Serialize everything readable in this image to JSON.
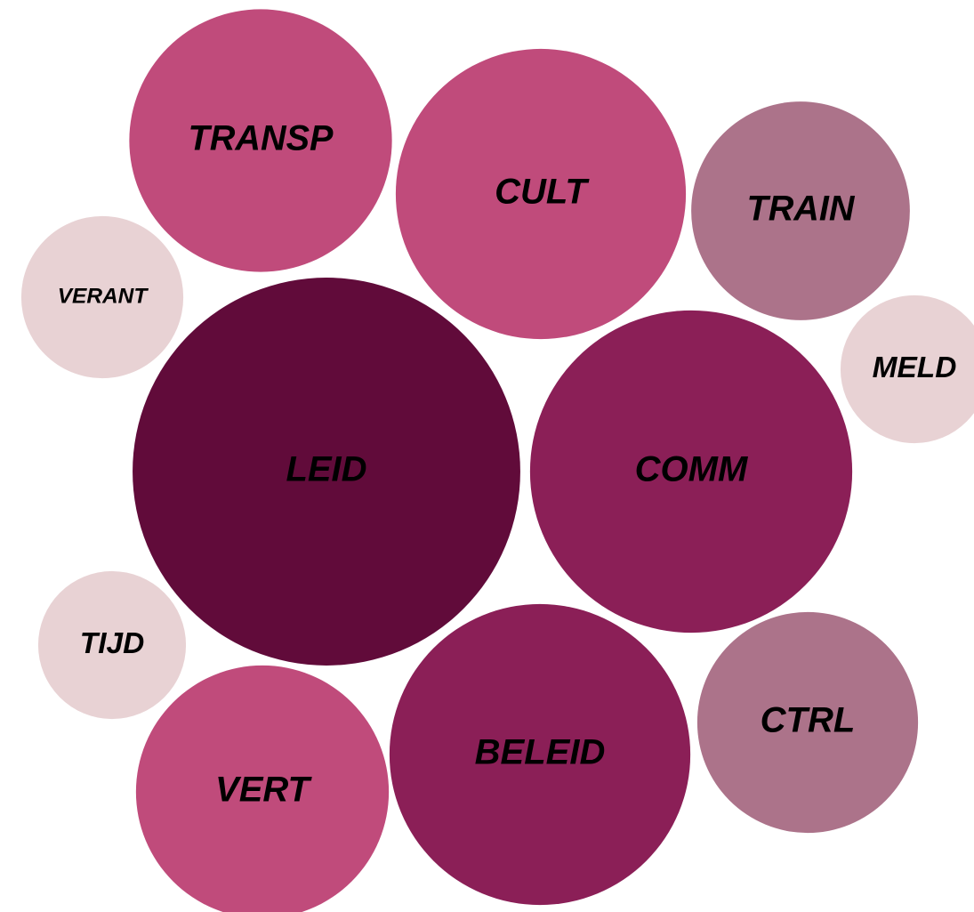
{
  "chart_data": {
    "type": "bubble",
    "categories": [
      "TRANSP",
      "CULT",
      "TRAIN",
      "VERANT",
      "MELD",
      "LEID",
      "COMM",
      "TIJD",
      "VERT",
      "BELEID",
      "CTRL"
    ],
    "values": [
      218,
      266,
      151,
      83,
      69,
      475,
      328,
      69,
      202,
      286,
      154
    ],
    "colors": [
      "#c04b7b",
      "#c04b7b",
      "#ac738a",
      "#e8d2d4",
      "#e8d2d4",
      "#610b3a",
      "#8b1f57",
      "#e8d2d4",
      "#c04b7b",
      "#8b1f57",
      "#ac738a"
    ]
  }
}
